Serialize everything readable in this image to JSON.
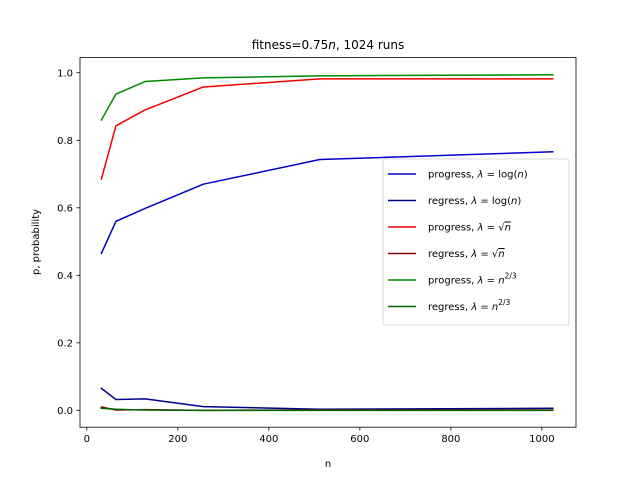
{
  "chart_data": {
    "type": "line",
    "title": "fitness=0.75n, 1024 runs",
    "title_parts": [
      "fitness=0.75",
      "n",
      ", 1024 runs"
    ],
    "xlabel": "n",
    "ylabel": "p, probability",
    "xlim": [
      -15,
      1075
    ],
    "ylim": [
      -0.05,
      1.045
    ],
    "xticks": [
      0,
      200,
      400,
      600,
      800,
      1000
    ],
    "yticks": [
      0.0,
      0.2,
      0.4,
      0.6,
      0.8,
      1.0
    ],
    "xtick_labels": [
      "0",
      "200",
      "400",
      "600",
      "800",
      "1000"
    ],
    "ytick_labels": [
      "0.0",
      "0.2",
      "0.4",
      "0.6",
      "0.8",
      "1.0"
    ],
    "grid": false,
    "legend_position": "center-right",
    "x": [
      32,
      64,
      128,
      256,
      512,
      1024
    ],
    "series": [
      {
        "name": "progress, λ = log(n)",
        "legend": {
          "prefix": "progress, ",
          "lam": "λ",
          "eq": " = ",
          "fn": "log(",
          "arg": "n",
          "close": ")"
        },
        "color": "#0000cc",
        "values": [
          0.465,
          0.56,
          0.598,
          0.67,
          0.743,
          0.766
        ]
      },
      {
        "name": "regress, λ = log(n)",
        "legend": {
          "prefix": "regress, ",
          "lam": "λ",
          "eq": " = ",
          "fn": "log(",
          "arg": "n",
          "close": ")"
        },
        "color": "#00008b",
        "values": [
          0.065,
          0.032,
          0.034,
          0.011,
          0.003,
          0.006
        ]
      },
      {
        "name": "progress, λ = √n",
        "legend": {
          "prefix": "progress, ",
          "lam": "λ",
          "eq": " = ",
          "sqrt": "√",
          "arg": "n"
        },
        "color": "#ee0000",
        "values": [
          0.685,
          0.843,
          0.89,
          0.958,
          0.982,
          0.982
        ]
      },
      {
        "name": "regress, λ = √n",
        "legend": {
          "prefix": "regress, ",
          "lam": "λ",
          "eq": " = ",
          "sqrt": "√",
          "arg": "n"
        },
        "color": "#8b0000",
        "values": [
          0.01,
          0.001,
          0.002,
          0.0,
          0.001,
          0.001
        ]
      },
      {
        "name": "progress, λ = n^(2/3)",
        "legend": {
          "prefix": "progress, ",
          "lam": "λ",
          "eq": " = ",
          "arg": "n",
          "sup": "2/3"
        },
        "color": "#008800",
        "values": [
          0.86,
          0.937,
          0.974,
          0.985,
          0.991,
          0.994
        ]
      },
      {
        "name": "regress, λ = n^(2/3)",
        "legend": {
          "prefix": "regress, ",
          "lam": "λ",
          "eq": " = ",
          "arg": "n",
          "sup": "2/3"
        },
        "color": "#006400",
        "values": [
          0.006,
          0.003,
          0.001,
          0.0,
          0.0,
          0.0
        ]
      }
    ]
  }
}
